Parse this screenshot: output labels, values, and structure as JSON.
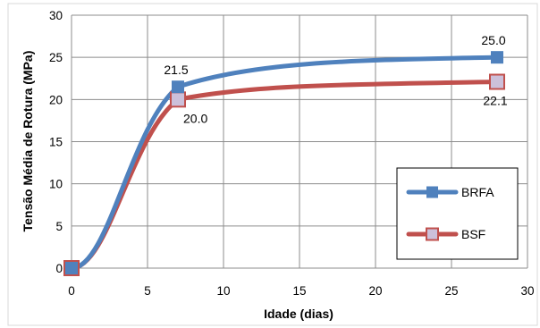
{
  "chart_data": {
    "type": "line",
    "title": "",
    "xlabel": "Idade (dias)",
    "ylabel": "Tensão Média de Rotura (MPa)",
    "xlim": [
      0,
      30
    ],
    "ylim": [
      0,
      30
    ],
    "x_ticks": [
      "0",
      "5",
      "10",
      "15",
      "20",
      "25",
      "30"
    ],
    "y_ticks": [
      "0",
      "5",
      "10",
      "15",
      "20",
      "25",
      "30"
    ],
    "grid": true,
    "smoothed": true,
    "legend_position": "bottom-right",
    "series": [
      {
        "name": "BRFA",
        "color": "#4f81bd",
        "marker_fill": "#4f81bd",
        "marker_stroke": "#4f81bd",
        "x": [
          0,
          7,
          28
        ],
        "y": [
          0,
          21.5,
          25.0
        ],
        "labels": [
          "",
          "21.5",
          "25.0"
        ],
        "label_positions": [
          "none",
          "above",
          "above"
        ]
      },
      {
        "name": "BSF",
        "color": "#c0504d",
        "marker_fill": "#ccc0da",
        "marker_stroke": "#c0504d",
        "x": [
          0,
          7,
          28
        ],
        "y": [
          0,
          20.0,
          22.1
        ],
        "labels": [
          "",
          "20.0",
          "22.1"
        ],
        "label_positions": [
          "none",
          "below",
          "below"
        ]
      }
    ]
  }
}
